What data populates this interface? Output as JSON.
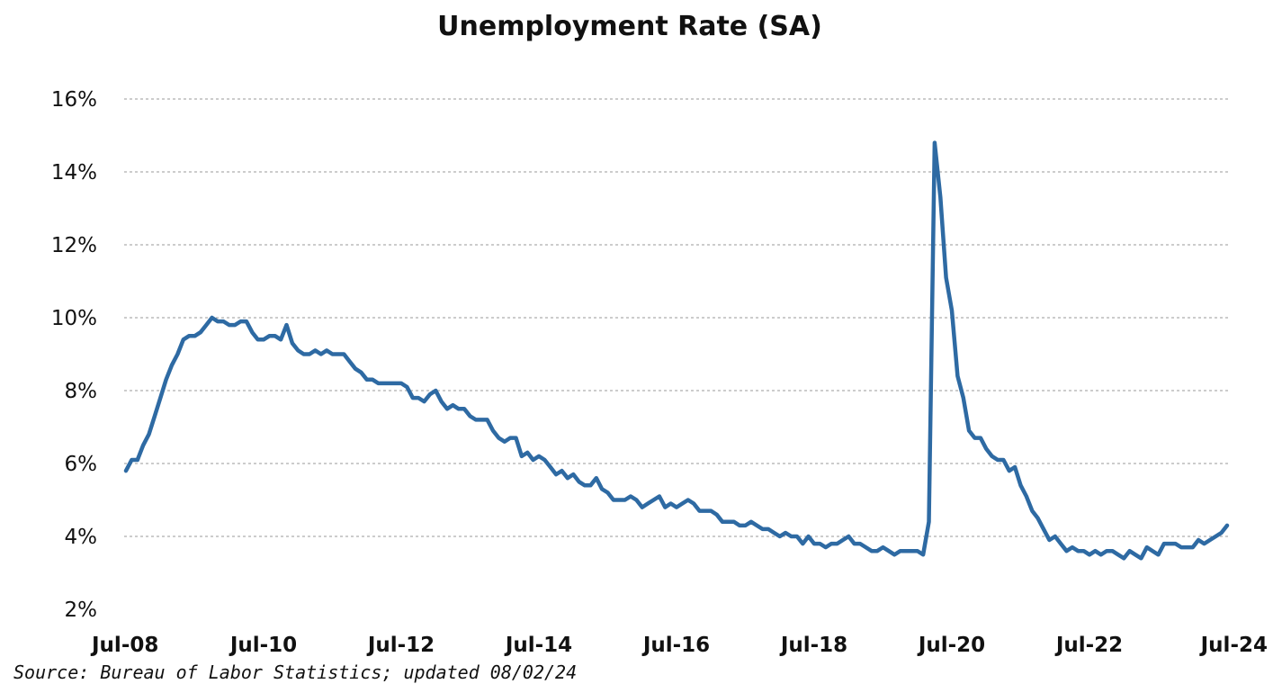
{
  "chart_data": {
    "type": "line",
    "title": "Unemployment Rate (SA)",
    "source": "Source: Bureau of Labor Statistics; updated 08/02/24",
    "ylim": [
      2,
      16
    ],
    "yticks": [
      2,
      4,
      6,
      8,
      10,
      12,
      14,
      16
    ],
    "ytick_labels": [
      "2%",
      "4%",
      "6%",
      "8%",
      "10%",
      "12%",
      "14%",
      "16%"
    ],
    "xticks": [
      "2008-07",
      "2010-07",
      "2012-07",
      "2014-07",
      "2016-07",
      "2018-07",
      "2020-07",
      "2022-07",
      "2024-07"
    ],
    "xtick_labels": [
      "Jul-08",
      "Jul-10",
      "Jul-12",
      "Jul-14",
      "Jul-16",
      "Jul-18",
      "Jul-20",
      "Jul-22",
      "Jul-24"
    ],
    "grid": "horizontal dashed",
    "line_color": "#2e6aa3",
    "series": [
      {
        "x_start": "2008-07",
        "frequency": "monthly",
        "values": [
          5.8,
          6.1,
          6.1,
          6.5,
          6.8,
          7.3,
          7.8,
          8.3,
          8.7,
          9.0,
          9.4,
          9.5,
          9.5,
          9.6,
          9.8,
          10.0,
          9.9,
          9.9,
          9.8,
          9.8,
          9.9,
          9.9,
          9.6,
          9.4,
          9.4,
          9.5,
          9.5,
          9.4,
          9.8,
          9.3,
          9.1,
          9.0,
          9.0,
          9.1,
          9.0,
          9.1,
          9.0,
          9.0,
          9.0,
          8.8,
          8.6,
          8.5,
          8.3,
          8.3,
          8.2,
          8.2,
          8.2,
          8.2,
          8.2,
          8.1,
          7.8,
          7.8,
          7.7,
          7.9,
          8.0,
          7.7,
          7.5,
          7.6,
          7.5,
          7.5,
          7.3,
          7.2,
          7.2,
          7.2,
          6.9,
          6.7,
          6.6,
          6.7,
          6.7,
          6.2,
          6.3,
          6.1,
          6.2,
          6.1,
          5.9,
          5.7,
          5.8,
          5.6,
          5.7,
          5.5,
          5.4,
          5.4,
          5.6,
          5.3,
          5.2,
          5.0,
          5.0,
          5.0,
          5.1,
          5.0,
          4.8,
          4.9,
          5.0,
          5.1,
          4.8,
          4.9,
          4.8,
          4.9,
          5.0,
          4.9,
          4.7,
          4.7,
          4.7,
          4.6,
          4.4,
          4.4,
          4.4,
          4.3,
          4.3,
          4.4,
          4.3,
          4.2,
          4.2,
          4.1,
          4.0,
          4.1,
          4.0,
          4.0,
          3.8,
          4.0,
          3.8,
          3.8,
          3.7,
          3.8,
          3.8,
          3.9,
          4.0,
          3.8,
          3.8,
          3.7,
          3.6,
          3.6,
          3.7,
          3.6,
          3.5,
          3.6,
          3.6,
          3.6,
          3.6,
          3.5,
          4.4,
          14.8,
          13.3,
          11.1,
          10.2,
          8.4,
          7.8,
          6.9,
          6.7,
          6.7,
          6.4,
          6.2,
          6.1,
          6.1,
          5.8,
          5.9,
          5.4,
          5.1,
          4.7,
          4.5,
          4.2,
          3.9,
          4.0,
          3.8,
          3.6,
          3.7,
          3.6,
          3.6,
          3.5,
          3.6,
          3.5,
          3.6,
          3.6,
          3.5,
          3.4,
          3.6,
          3.5,
          3.4,
          3.7,
          3.6,
          3.5,
          3.8,
          3.8,
          3.8,
          3.7,
          3.7,
          3.7,
          3.9,
          3.8,
          3.9,
          4.0,
          4.1,
          4.3
        ]
      }
    ]
  }
}
